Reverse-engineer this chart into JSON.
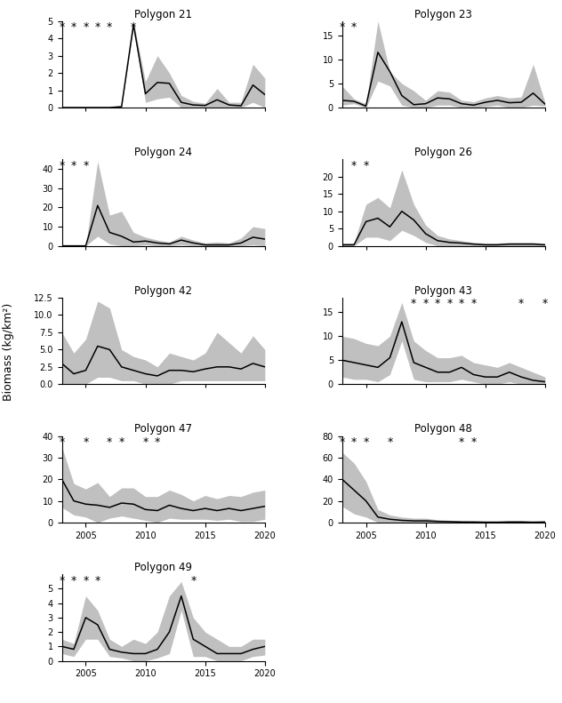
{
  "polygons": [
    {
      "title": "Polygon 21",
      "years": [
        2003,
        2004,
        2005,
        2006,
        2007,
        2008,
        2009,
        2010,
        2011,
        2012,
        2013,
        2014,
        2015,
        2016,
        2017,
        2018,
        2019,
        2020
      ],
      "mean": [
        0.0,
        0.0,
        0.0,
        0.0,
        0.0,
        0.05,
        4.8,
        0.8,
        1.45,
        1.4,
        0.3,
        0.15,
        0.12,
        0.45,
        0.15,
        0.1,
        1.3,
        0.75
      ],
      "upper": [
        0.0,
        0.0,
        0.0,
        0.0,
        0.0,
        0.1,
        5.0,
        1.5,
        3.0,
        2.0,
        0.7,
        0.35,
        0.25,
        1.1,
        0.3,
        0.3,
        2.5,
        1.7
      ],
      "lower": [
        0.0,
        0.0,
        0.0,
        0.0,
        0.0,
        0.0,
        4.6,
        0.3,
        0.5,
        0.6,
        0.0,
        0.0,
        0.0,
        0.0,
        0.0,
        0.0,
        0.3,
        0.0
      ],
      "stars": [
        2003,
        2004,
        2005,
        2006,
        2007,
        2009
      ],
      "ylim": [
        0,
        5
      ],
      "yticks": [
        0,
        1,
        2,
        3,
        4,
        5
      ]
    },
    {
      "title": "Polygon 23",
      "years": [
        2003,
        2004,
        2005,
        2006,
        2007,
        2008,
        2009,
        2010,
        2011,
        2012,
        2013,
        2014,
        2015,
        2016,
        2017,
        2018,
        2019,
        2020
      ],
      "mean": [
        1.5,
        1.3,
        0.3,
        11.5,
        7.5,
        2.5,
        0.6,
        0.8,
        2.0,
        1.8,
        0.8,
        0.5,
        1.1,
        1.5,
        1.0,
        1.1,
        3.0,
        0.7
      ],
      "upper": [
        4.5,
        1.8,
        0.8,
        18.0,
        7.5,
        5.0,
        3.5,
        1.5,
        3.5,
        3.2,
        1.5,
        1.2,
        2.0,
        2.5,
        2.0,
        2.2,
        9.0,
        1.0
      ],
      "lower": [
        0.5,
        0.8,
        0.0,
        5.5,
        4.5,
        0.5,
        0.0,
        0.0,
        0.5,
        0.5,
        0.0,
        0.0,
        0.2,
        0.5,
        0.0,
        0.0,
        0.5,
        0.3
      ],
      "stars": [
        2003,
        2004
      ],
      "ylim": [
        0,
        18
      ],
      "yticks": [
        0,
        5,
        10,
        15
      ]
    },
    {
      "title": "Polygon 24",
      "years": [
        2003,
        2004,
        2005,
        2006,
        2007,
        2008,
        2009,
        2010,
        2011,
        2012,
        2013,
        2014,
        2015,
        2016,
        2017,
        2018,
        2019,
        2020
      ],
      "mean": [
        0.0,
        0.0,
        0.0,
        21.0,
        7.0,
        5.0,
        2.0,
        2.5,
        1.5,
        1.0,
        3.0,
        1.5,
        0.5,
        0.5,
        0.5,
        1.5,
        4.5,
        3.5
      ],
      "upper": [
        0.0,
        0.0,
        0.0,
        44.0,
        16.0,
        18.0,
        7.0,
        4.5,
        3.0,
        2.0,
        5.0,
        3.0,
        1.5,
        2.0,
        1.5,
        4.0,
        10.0,
        9.0
      ],
      "lower": [
        0.0,
        0.0,
        0.0,
        5.0,
        1.0,
        0.0,
        0.0,
        0.5,
        0.0,
        0.0,
        0.5,
        0.0,
        0.0,
        0.0,
        0.0,
        0.0,
        0.5,
        0.0
      ],
      "stars": [
        2003,
        2004,
        2005
      ],
      "ylim": [
        0,
        45
      ],
      "yticks": [
        0,
        10,
        20,
        30,
        40
      ]
    },
    {
      "title": "Polygon 26",
      "years": [
        2003,
        2004,
        2005,
        2006,
        2007,
        2008,
        2009,
        2010,
        2011,
        2012,
        2013,
        2014,
        2015,
        2016,
        2017,
        2018,
        2019,
        2020
      ],
      "mean": [
        0.3,
        0.3,
        7.0,
        8.0,
        5.5,
        10.0,
        7.5,
        3.5,
        1.5,
        1.0,
        0.8,
        0.5,
        0.3,
        0.3,
        0.5,
        0.5,
        0.5,
        0.3
      ],
      "upper": [
        0.8,
        0.8,
        12.0,
        14.0,
        11.0,
        22.0,
        12.0,
        6.0,
        3.0,
        2.0,
        1.5,
        1.0,
        0.8,
        0.8,
        1.0,
        1.0,
        1.0,
        0.7
      ],
      "lower": [
        0.0,
        0.0,
        2.5,
        2.5,
        1.5,
        4.5,
        3.0,
        1.0,
        0.0,
        0.0,
        0.0,
        0.0,
        0.0,
        0.0,
        0.0,
        0.0,
        0.0,
        0.0
      ],
      "stars": [
        2004,
        2005
      ],
      "ylim": [
        0,
        25
      ],
      "yticks": [
        0,
        5,
        10,
        15,
        20
      ]
    },
    {
      "title": "Polygon 42",
      "years": [
        2003,
        2004,
        2005,
        2006,
        2007,
        2008,
        2009,
        2010,
        2011,
        2012,
        2013,
        2014,
        2015,
        2016,
        2017,
        2018,
        2019,
        2020
      ],
      "mean": [
        3.0,
        1.5,
        2.0,
        5.5,
        5.0,
        2.5,
        2.0,
        1.5,
        1.2,
        2.0,
        2.0,
        1.8,
        2.2,
        2.5,
        2.5,
        2.2,
        3.0,
        2.5
      ],
      "upper": [
        7.5,
        4.5,
        6.5,
        12.0,
        11.0,
        5.0,
        4.0,
        3.5,
        2.5,
        4.5,
        4.0,
        3.5,
        4.5,
        7.5,
        6.0,
        4.5,
        7.0,
        5.0
      ],
      "lower": [
        0.0,
        0.0,
        0.0,
        1.0,
        1.0,
        0.5,
        0.5,
        0.0,
        0.0,
        0.0,
        0.5,
        0.5,
        0.5,
        0.5,
        0.5,
        0.5,
        0.5,
        0.5
      ],
      "stars": [],
      "ylim": [
        0,
        12.5
      ],
      "yticks": [
        0.0,
        2.5,
        5.0,
        7.5,
        10.0,
        12.5
      ]
    },
    {
      "title": "Polygon 43",
      "years": [
        2003,
        2004,
        2005,
        2006,
        2007,
        2008,
        2009,
        2010,
        2011,
        2012,
        2013,
        2014,
        2015,
        2016,
        2017,
        2018,
        2019,
        2020
      ],
      "mean": [
        5.0,
        4.5,
        4.0,
        3.5,
        5.5,
        13.0,
        4.5,
        3.5,
        2.5,
        2.5,
        3.5,
        2.0,
        1.5,
        1.5,
        2.5,
        1.5,
        0.8,
        0.5
      ],
      "upper": [
        10.0,
        9.5,
        8.5,
        8.0,
        10.0,
        17.0,
        9.0,
        7.0,
        5.5,
        5.5,
        6.0,
        4.5,
        4.0,
        3.5,
        4.5,
        3.5,
        2.5,
        1.5
      ],
      "lower": [
        1.5,
        1.0,
        1.0,
        0.5,
        2.0,
        9.0,
        1.0,
        0.5,
        0.5,
        0.5,
        1.0,
        0.5,
        0.0,
        0.0,
        0.5,
        0.0,
        0.0,
        0.0
      ],
      "stars": [
        2009,
        2010,
        2011,
        2012,
        2013,
        2014,
        2018,
        2020
      ],
      "ylim": [
        0,
        18
      ],
      "yticks": [
        0,
        5,
        10,
        15
      ]
    },
    {
      "title": "Polygon 47",
      "years": [
        2003,
        2004,
        2005,
        2006,
        2007,
        2008,
        2009,
        2010,
        2011,
        2012,
        2013,
        2014,
        2015,
        2016,
        2017,
        2018,
        2019,
        2020
      ],
      "mean": [
        20.0,
        10.0,
        8.5,
        8.0,
        7.0,
        9.0,
        8.5,
        6.0,
        5.5,
        8.0,
        6.5,
        5.5,
        6.5,
        5.5,
        6.5,
        5.5,
        6.5,
        7.5
      ],
      "upper": [
        35.0,
        18.0,
        15.5,
        18.5,
        12.0,
        16.0,
        16.0,
        12.0,
        12.0,
        15.0,
        13.0,
        10.0,
        12.5,
        11.0,
        12.5,
        12.0,
        14.0,
        15.0
      ],
      "lower": [
        7.0,
        3.5,
        2.5,
        0.0,
        2.0,
        3.0,
        2.0,
        1.0,
        0.0,
        2.0,
        1.5,
        1.5,
        1.5,
        1.0,
        1.5,
        0.5,
        0.5,
        1.5
      ],
      "stars": [
        2003,
        2005,
        2007,
        2008,
        2010,
        2011
      ],
      "ylim": [
        0,
        40
      ],
      "yticks": [
        0,
        10,
        20,
        30,
        40
      ]
    },
    {
      "title": "Polygon 48",
      "years": [
        2003,
        2004,
        2005,
        2006,
        2007,
        2008,
        2009,
        2010,
        2011,
        2012,
        2013,
        2014,
        2015,
        2016,
        2017,
        2018,
        2019,
        2020
      ],
      "mean": [
        40.0,
        30.0,
        20.0,
        5.0,
        3.0,
        2.0,
        1.5,
        1.5,
        1.0,
        0.8,
        0.5,
        0.5,
        0.3,
        0.3,
        0.5,
        0.5,
        0.3,
        0.5
      ],
      "upper": [
        65.0,
        55.0,
        38.0,
        12.0,
        7.0,
        5.0,
        4.0,
        4.0,
        2.5,
        2.0,
        1.5,
        1.0,
        0.8,
        1.0,
        1.5,
        1.5,
        0.8,
        1.2
      ],
      "lower": [
        15.0,
        8.0,
        5.0,
        0.0,
        0.0,
        0.0,
        0.0,
        0.0,
        0.0,
        0.0,
        0.0,
        0.0,
        0.0,
        0.0,
        0.0,
        0.0,
        0.0,
        0.0
      ],
      "stars": [
        2003,
        2004,
        2005,
        2007,
        2013,
        2014
      ],
      "ylim": [
        0,
        80
      ],
      "yticks": [
        0,
        20,
        40,
        60,
        80
      ]
    },
    {
      "title": "Polygon 49",
      "years": [
        2003,
        2004,
        2005,
        2006,
        2007,
        2008,
        2009,
        2010,
        2011,
        2012,
        2013,
        2014,
        2015,
        2016,
        2017,
        2018,
        2019,
        2020
      ],
      "mean": [
        1.0,
        0.8,
        3.0,
        2.5,
        0.8,
        0.6,
        0.5,
        0.5,
        0.8,
        2.0,
        4.5,
        1.5,
        1.0,
        0.5,
        0.5,
        0.5,
        0.8,
        1.0
      ],
      "upper": [
        1.5,
        1.2,
        4.5,
        3.5,
        1.5,
        1.0,
        1.5,
        1.2,
        2.0,
        4.5,
        5.5,
        3.0,
        2.0,
        1.5,
        1.0,
        1.0,
        1.5,
        1.5
      ],
      "lower": [
        0.5,
        0.3,
        1.5,
        1.5,
        0.3,
        0.2,
        0.0,
        0.0,
        0.2,
        0.5,
        3.5,
        0.3,
        0.3,
        0.0,
        0.0,
        0.0,
        0.3,
        0.4
      ],
      "stars": [
        2003,
        2004,
        2005,
        2006,
        2014
      ],
      "ylim": [
        0,
        6
      ],
      "yticks": [
        0,
        1,
        2,
        3,
        4,
        5
      ]
    }
  ],
  "fill_color": "#c0c0c0",
  "line_color": "#000000",
  "star_color": "#000000",
  "ylabel": "Biomass (kg/km²)",
  "background_color": "#ffffff",
  "xlim": [
    2003,
    2020
  ],
  "xticks": [
    2005,
    2010,
    2015,
    2020
  ]
}
